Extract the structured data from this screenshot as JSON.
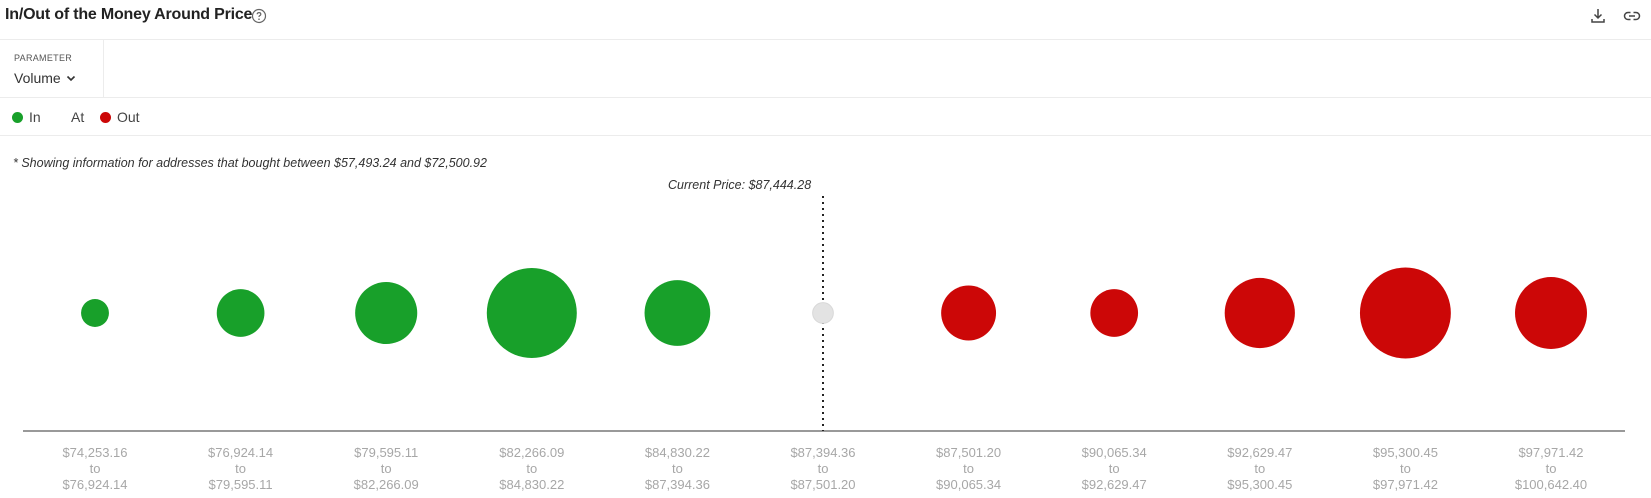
{
  "header": {
    "title": "In/Out of the Money Around Price",
    "icons": [
      "help-icon",
      "download-icon",
      "link-icon"
    ]
  },
  "parameter": {
    "label": "PARAMETER",
    "selected": "Volume"
  },
  "legend": {
    "in_label": "In",
    "at_label": "At",
    "out_label": "Out"
  },
  "colors": {
    "in": "#18a02a",
    "at": "#e3e3e3",
    "out": "#cc0707",
    "axis": "#333333",
    "tick_text": "#a7a7a7"
  },
  "note": "* Showing information for addresses that bought between $57,493.24 and $72,500.92",
  "current_price_label": "Current Price: $87,444.28",
  "chart_data": {
    "type": "bubble",
    "title": "In/Out of the Money Around Price",
    "parameter": "Volume",
    "current_price": 87444.28,
    "bins": [
      {
        "from": "$74,253.16",
        "to": "$76,924.14",
        "status": "In",
        "relative_size": 0.31
      },
      {
        "from": "$76,924.14",
        "to": "$79,595.11",
        "status": "In",
        "relative_size": 0.53
      },
      {
        "from": "$79,595.11",
        "to": "$82,266.09",
        "status": "In",
        "relative_size": 0.69
      },
      {
        "from": "$82,266.09",
        "to": "$84,830.22",
        "status": "In",
        "relative_size": 1.0
      },
      {
        "from": "$84,830.22",
        "to": "$87,394.36",
        "status": "In",
        "relative_size": 0.73
      },
      {
        "from": "$87,394.36",
        "to": "$87,501.20",
        "status": "At",
        "relative_size": 0.23
      },
      {
        "from": "$87,501.20",
        "to": "$90,065.34",
        "status": "Out",
        "relative_size": 0.61
      },
      {
        "from": "$90,065.34",
        "to": "$92,629.47",
        "status": "Out",
        "relative_size": 0.53
      },
      {
        "from": "$92,629.47",
        "to": "$95,300.45",
        "status": "Out",
        "relative_size": 0.78
      },
      {
        "from": "$95,300.45",
        "to": "$97,971.42",
        "status": "Out",
        "relative_size": 1.01
      },
      {
        "from": "$97,971.42",
        "to": "$100,642.40",
        "status": "Out",
        "relative_size": 0.8
      }
    ],
    "tick_connector": "to"
  }
}
